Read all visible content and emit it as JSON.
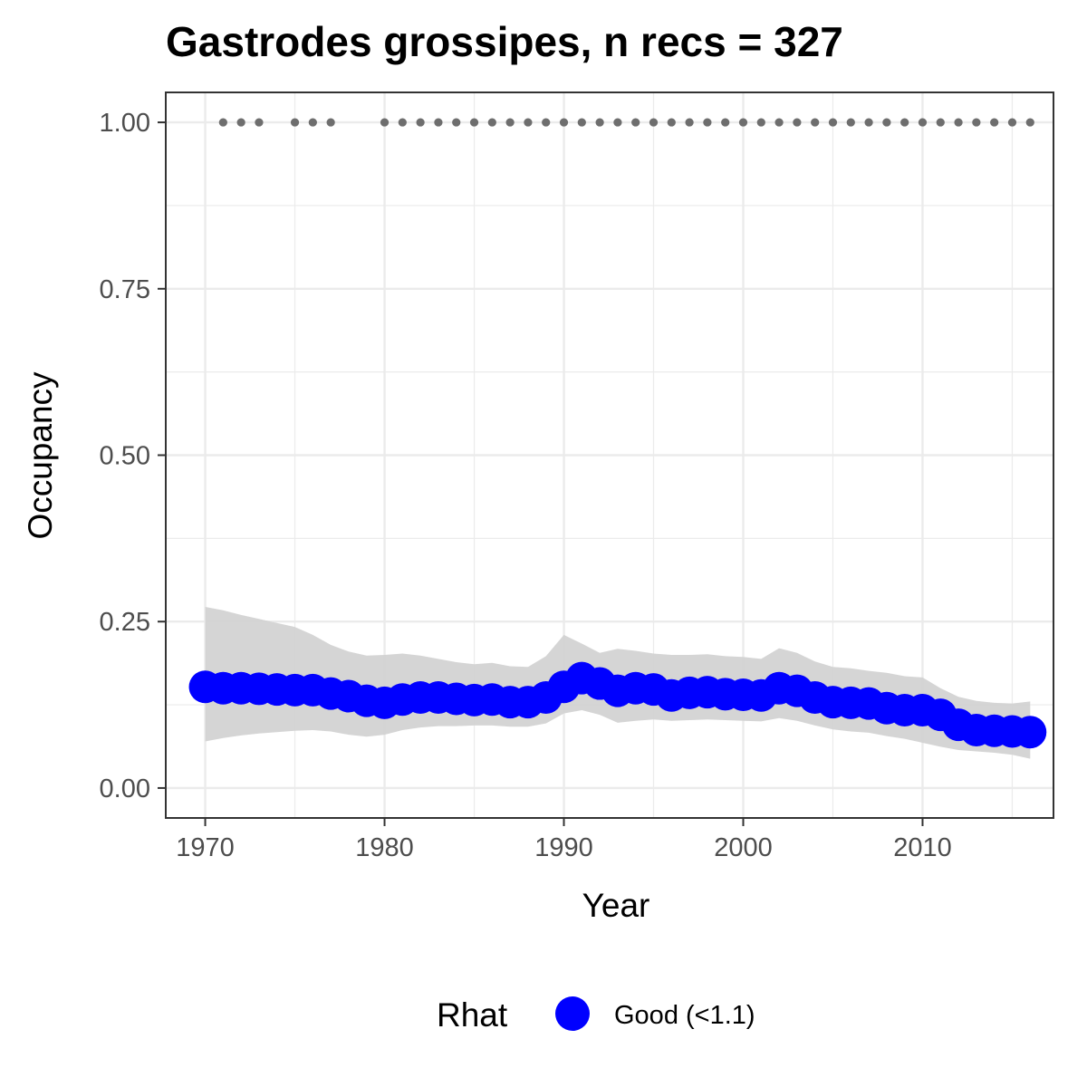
{
  "chart_data": {
    "type": "line",
    "title": "Gastrodes grossipes, n recs = 327",
    "xlabel": "Year",
    "ylabel": "Occupancy",
    "xlim": [
      1967.8,
      2017.3
    ],
    "ylim": [
      -0.045,
      1.045
    ],
    "x_ticks": [
      1970,
      1980,
      1990,
      2000,
      2010
    ],
    "x_tick_labels": [
      "1970",
      "1980",
      "1990",
      "2000",
      "2010"
    ],
    "y_ticks": [
      0,
      0.25,
      0.5,
      0.75,
      1
    ],
    "y_tick_labels": [
      "0.00",
      "0.25",
      "0.50",
      "0.75",
      "1.00"
    ],
    "grid": true,
    "legend_position": "bottom",
    "colors": {
      "points": "#0000ff",
      "ribbon": "#d3d3d3",
      "records": "#6e6e6e",
      "grid": "#ebebeb",
      "panel_border": "#333333"
    },
    "series": [
      {
        "name": "Good (<1.1)",
        "x": [
          1970,
          1971,
          1972,
          1973,
          1974,
          1975,
          1976,
          1977,
          1978,
          1979,
          1980,
          1981,
          1982,
          1983,
          1984,
          1985,
          1986,
          1987,
          1988,
          1989,
          1990,
          1991,
          1992,
          1993,
          1994,
          1995,
          1996,
          1997,
          1998,
          1999,
          2000,
          2001,
          2002,
          2003,
          2004,
          2005,
          2006,
          2007,
          2008,
          2009,
          2010,
          2011,
          2012,
          2013,
          2014,
          2015,
          2016
        ],
        "y": [
          0.152,
          0.15,
          0.15,
          0.149,
          0.148,
          0.147,
          0.147,
          0.142,
          0.138,
          0.131,
          0.128,
          0.133,
          0.136,
          0.136,
          0.134,
          0.132,
          0.133,
          0.129,
          0.129,
          0.136,
          0.152,
          0.165,
          0.157,
          0.146,
          0.15,
          0.148,
          0.139,
          0.143,
          0.144,
          0.141,
          0.14,
          0.139,
          0.15,
          0.146,
          0.136,
          0.129,
          0.128,
          0.127,
          0.12,
          0.117,
          0.117,
          0.11,
          0.095,
          0.087,
          0.086,
          0.085,
          0.084
        ],
        "lower": [
          0.07,
          0.075,
          0.079,
          0.082,
          0.084,
          0.086,
          0.087,
          0.085,
          0.08,
          0.077,
          0.08,
          0.087,
          0.091,
          0.093,
          0.093,
          0.094,
          0.094,
          0.092,
          0.092,
          0.097,
          0.112,
          0.117,
          0.11,
          0.098,
          0.101,
          0.103,
          0.101,
          0.102,
          0.103,
          0.102,
          0.101,
          0.1,
          0.105,
          0.101,
          0.094,
          0.088,
          0.085,
          0.083,
          0.078,
          0.074,
          0.068,
          0.062,
          0.057,
          0.055,
          0.053,
          0.05,
          0.044
        ],
        "upper": [
          0.272,
          0.267,
          0.26,
          0.254,
          0.248,
          0.242,
          0.23,
          0.215,
          0.205,
          0.199,
          0.2,
          0.202,
          0.199,
          0.194,
          0.189,
          0.186,
          0.188,
          0.183,
          0.182,
          0.198,
          0.23,
          0.217,
          0.203,
          0.209,
          0.206,
          0.202,
          0.2,
          0.2,
          0.201,
          0.198,
          0.197,
          0.194,
          0.21,
          0.203,
          0.19,
          0.182,
          0.18,
          0.176,
          0.173,
          0.168,
          0.166,
          0.15,
          0.137,
          0.131,
          0.128,
          0.127,
          0.13
        ]
      }
    ],
    "records_years": [
      1971,
      1972,
      1973,
      1975,
      1976,
      1977,
      1980,
      1981,
      1982,
      1983,
      1984,
      1985,
      1986,
      1987,
      1988,
      1989,
      1990,
      1991,
      1992,
      1993,
      1994,
      1995,
      1996,
      1997,
      1998,
      1999,
      2000,
      2001,
      2002,
      2003,
      2004,
      2005,
      2006,
      2007,
      2008,
      2009,
      2010,
      2011,
      2012,
      2013,
      2014,
      2015,
      2016
    ],
    "records_value": 1.0,
    "legend": {
      "title": "Rhat",
      "entries": [
        {
          "label": "Good (<1.1)",
          "color": "#0000ff"
        }
      ]
    }
  }
}
